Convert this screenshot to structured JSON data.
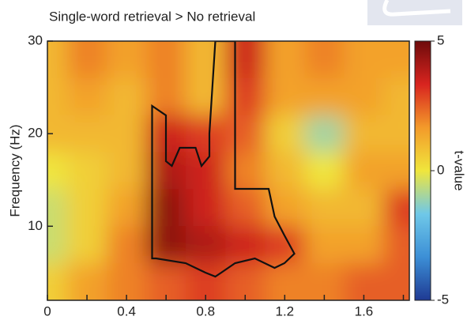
{
  "chart_data": {
    "type": "heatmap",
    "title": "Single-word retrieval > No retrieval",
    "y_label": "Frequency (Hz)",
    "colorbar_label": "t-value",
    "x": [
      0,
      0.2,
      0.4,
      0.6,
      0.8,
      1.0,
      1.2,
      1.4,
      1.6,
      1.8
    ],
    "y": [
      28,
      24,
      20,
      16,
      12,
      8,
      4
    ],
    "values": [
      [
        1,
        2,
        1.5,
        2,
        1,
        3.5,
        1.5,
        2,
        1.5,
        1.5
      ],
      [
        1,
        1.5,
        1,
        2,
        1,
        3,
        1.5,
        1.5,
        1.5,
        1
      ],
      [
        1,
        1,
        1,
        3.5,
        3,
        2.5,
        0.5,
        -1,
        1,
        1
      ],
      [
        0,
        0.5,
        1,
        4,
        3.5,
        2,
        1,
        0,
        1.5,
        1.5
      ],
      [
        -0.5,
        0.5,
        1.5,
        4.5,
        3.5,
        2.5,
        1.5,
        1,
        1,
        3
      ],
      [
        -0.5,
        0.5,
        2,
        4.5,
        4,
        3.5,
        3,
        1.5,
        1.5,
        2.5
      ],
      [
        0.5,
        1.5,
        2,
        2.5,
        3,
        2.5,
        2,
        2,
        2.5,
        2.5
      ]
    ],
    "xlim": [
      0,
      1.83
    ],
    "xticks": [
      0,
      0.4,
      0.8,
      1.2,
      1.6
    ],
    "xminorticks": [
      0.2,
      0.6,
      1.0,
      1.4,
      1.8
    ],
    "ylim": [
      2,
      30
    ],
    "yticks": [
      10,
      20,
      30
    ],
    "clim": [
      -5,
      5
    ],
    "cticks": [
      -5,
      0,
      5
    ],
    "colormap": [
      "#1f3a93",
      "#3c8fd6",
      "#6fc8e8",
      "#f0e63c",
      "#f39a2a",
      "#d8241f",
      "#6e0b0b"
    ]
  }
}
